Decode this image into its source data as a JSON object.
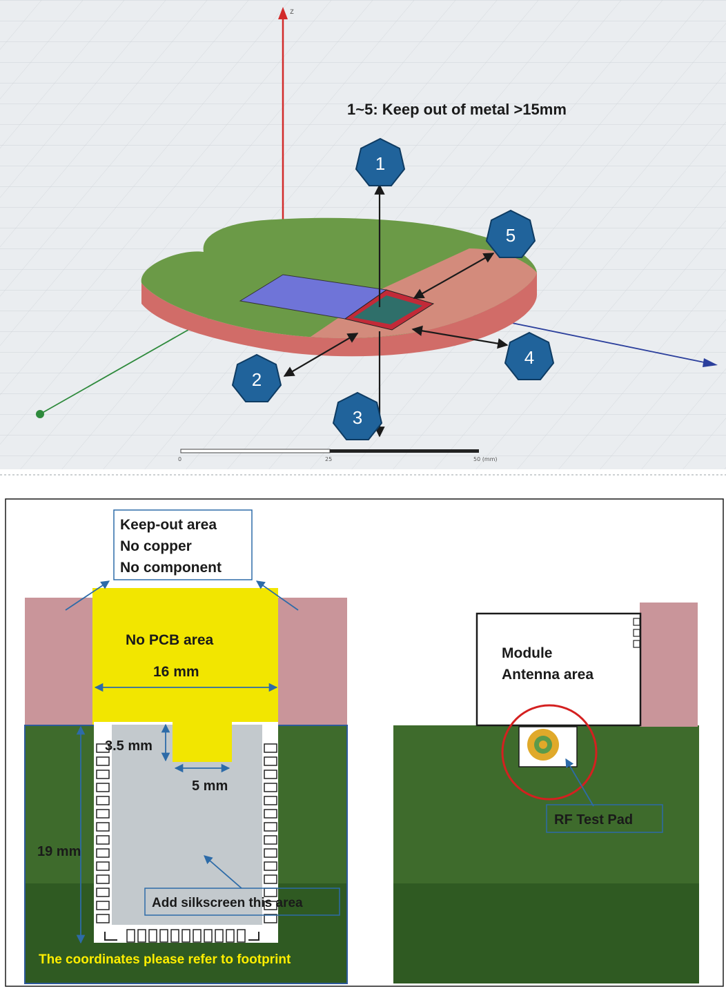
{
  "top_panel": {
    "heading": "1~5: Keep out of metal >15mm",
    "badges": [
      "1",
      "2",
      "3",
      "4",
      "5"
    ],
    "scale_ticks": [
      "0",
      "25",
      "50 (mm)"
    ],
    "axis_labels": {
      "z": "z"
    }
  },
  "bottom_left": {
    "keepout_lines": [
      "Keep-out area",
      "No copper",
      "No component"
    ],
    "no_pcb_label": "No PCB area",
    "width_label": "16 mm",
    "notch_depth_label": "3.5 mm",
    "notch_width_label": "5 mm",
    "height_label": "19 mm",
    "silkscreen_label": "Add silkscreen this area",
    "footer_note": "The coordinates please refer to footprint"
  },
  "bottom_right": {
    "antenna_lines": [
      "Module",
      "Antenna area"
    ],
    "rf_pad_label": "RF Test Pad"
  },
  "colors": {
    "pcb_green": "#3e6b2c",
    "keepout_pink": "#c9959a",
    "no_pcb_yellow": "#f2e600",
    "module_grey": "#c3c9cd",
    "badge_blue": "#20639b",
    "rf_circle_red": "#d42020",
    "footer_text_yellow": "#ffee00"
  }
}
